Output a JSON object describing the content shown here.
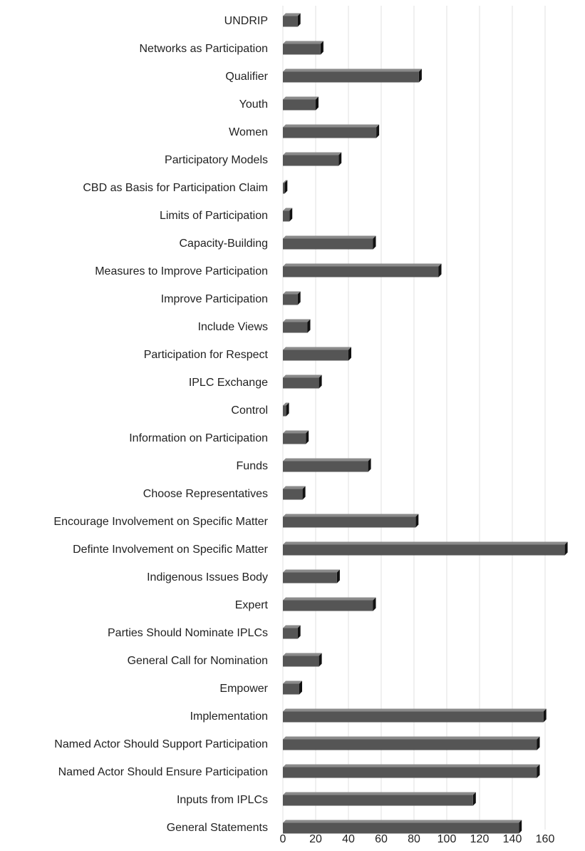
{
  "chart_data": {
    "type": "bar",
    "orientation": "horizontal",
    "categories": [
      "UNDRIP",
      "Networks as Participation",
      "Qualifier",
      "Youth",
      "Women",
      "Participatory Models",
      "CBD as Basis for Participation Claim",
      "Limits of Participation",
      "Capacity-Building",
      "Measures to Improve Participation",
      "Improve Participation",
      "Include Views",
      "Participation for Respect",
      "IPLC Exchange",
      "Control",
      "Information on Participation",
      "Funds",
      "Choose Representatives",
      "Encourage Involvement on Specific Matter",
      "Definte Involvement on Specific Matter",
      "Indigenous Issues Body",
      "Expert",
      "Parties Should Nominate IPLCs",
      "General Call for Nomination",
      "Empower",
      "Implementation",
      "Named Actor Should Support Participation",
      "Named Actor Should Ensure Participation",
      "Inputs from IPLCs",
      "General Statements"
    ],
    "values": [
      9,
      23,
      83,
      20,
      57,
      34,
      1,
      4,
      55,
      95,
      9,
      15,
      40,
      22,
      2,
      14,
      52,
      12,
      81,
      172,
      33,
      55,
      9,
      22,
      10,
      159,
      155,
      155,
      116,
      144
    ],
    "color": "#555555",
    "xlim": [
      0,
      180
    ],
    "xticks": [
      0,
      20,
      40,
      60,
      80,
      100,
      120,
      140,
      160
    ],
    "grid": true
  }
}
